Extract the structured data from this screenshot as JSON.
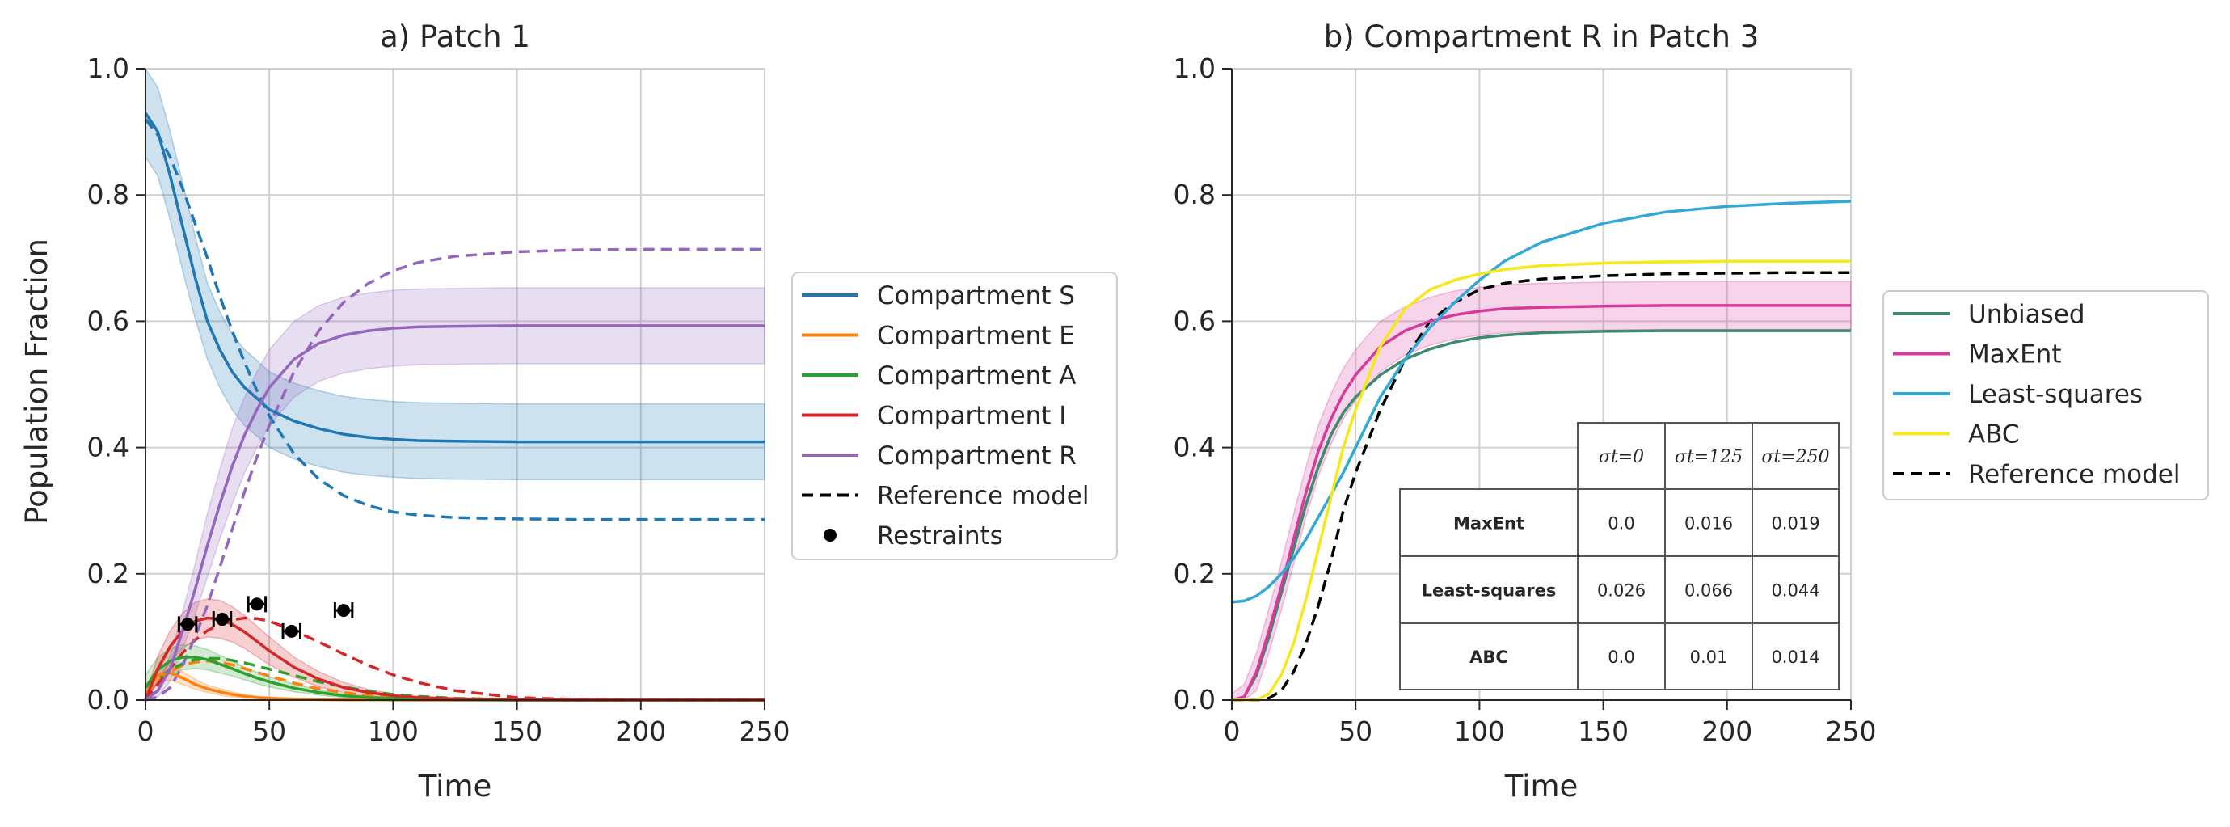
{
  "colors": {
    "S": "#1f77b4",
    "E": "#ff7f0e",
    "A": "#2ca02c",
    "I": "#d62728",
    "R": "#9467bd",
    "unbiased": "#3d8a6e",
    "maxent": "#d63a9a",
    "lsq": "#32a8d6",
    "abc": "#f7e81b",
    "ref": "#000000",
    "grid": "#d0d0d0",
    "axis": "#262626"
  },
  "chart_data": [
    {
      "type": "line",
      "title": "a) Patch 1",
      "xlabel": "Time",
      "ylabel": "Population Fraction",
      "xlim": [
        0,
        250
      ],
      "ylim": [
        0,
        1.0
      ],
      "xticks": [
        "0",
        "50",
        "100",
        "150",
        "200",
        "250"
      ],
      "yticks": [
        "0.0",
        "0.2",
        "0.4",
        "0.6",
        "0.8",
        "1.0"
      ],
      "grid": true,
      "legend_position": "right",
      "x": [
        0,
        5,
        10,
        15,
        20,
        25,
        30,
        35,
        40,
        45,
        50,
        60,
        70,
        80,
        90,
        100,
        110,
        125,
        150,
        175,
        200,
        225,
        250
      ],
      "series": [
        {
          "name": "Compartment S",
          "key": "S",
          "values": [
            0.93,
            0.9,
            0.83,
            0.75,
            0.67,
            0.6,
            0.555,
            0.52,
            0.495,
            0.478,
            0.46,
            0.442,
            0.43,
            0.421,
            0.416,
            0.413,
            0.411,
            0.41,
            0.409,
            0.409,
            0.409,
            0.409,
            0.409
          ],
          "band": [
            0.07,
            0.07,
            0.07,
            0.07,
            0.065,
            0.06,
            0.06,
            0.06,
            0.06,
            0.06,
            0.06,
            0.06,
            0.06,
            0.06,
            0.06,
            0.06,
            0.06,
            0.06,
            0.06,
            0.06,
            0.06,
            0.06,
            0.06
          ]
        },
        {
          "name": "Compartment E",
          "key": "E",
          "values": [
            0.01,
            0.04,
            0.043,
            0.035,
            0.025,
            0.018,
            0.013,
            0.009,
            0.006,
            0.004,
            0.003,
            0.0015,
            0.0008,
            0.0004,
            0.0002,
            0.0001,
            0,
            0,
            0,
            0,
            0,
            0,
            0
          ],
          "band": [
            0.012,
            0.012,
            0.012,
            0.01,
            0.008,
            0.006,
            0.005,
            0.004,
            0.003,
            0.002,
            0.002,
            0.001,
            0.001,
            0,
            0,
            0,
            0,
            0,
            0,
            0,
            0,
            0,
            0
          ]
        },
        {
          "name": "Compartment A",
          "key": "A",
          "values": [
            0.02,
            0.048,
            0.062,
            0.068,
            0.068,
            0.064,
            0.057,
            0.05,
            0.042,
            0.035,
            0.029,
            0.019,
            0.012,
            0.007,
            0.004,
            0.0025,
            0.0015,
            0.0005,
            0,
            0,
            0,
            0,
            0
          ],
          "band": [
            0.02,
            0.02,
            0.02,
            0.02,
            0.018,
            0.016,
            0.014,
            0.012,
            0.01,
            0.009,
            0.008,
            0.006,
            0.004,
            0.003,
            0.002,
            0.001,
            0.001,
            0,
            0,
            0,
            0,
            0,
            0
          ]
        },
        {
          "name": "Compartment I",
          "key": "I",
          "values": [
            0.0,
            0.05,
            0.085,
            0.11,
            0.125,
            0.13,
            0.128,
            0.12,
            0.108,
            0.093,
            0.078,
            0.052,
            0.033,
            0.02,
            0.012,
            0.007,
            0.004,
            0.002,
            0.0005,
            0,
            0,
            0,
            0
          ],
          "band": [
            0.005,
            0.02,
            0.025,
            0.028,
            0.03,
            0.03,
            0.03,
            0.028,
            0.026,
            0.024,
            0.022,
            0.016,
            0.012,
            0.008,
            0.005,
            0.003,
            0.002,
            0.001,
            0,
            0,
            0,
            0,
            0
          ]
        },
        {
          "name": "Compartment R",
          "key": "R",
          "values": [
            0.0,
            0.015,
            0.05,
            0.11,
            0.175,
            0.245,
            0.31,
            0.37,
            0.42,
            0.46,
            0.495,
            0.54,
            0.565,
            0.578,
            0.585,
            0.589,
            0.591,
            0.592,
            0.593,
            0.593,
            0.593,
            0.593,
            0.593
          ],
          "band": [
            0.005,
            0.01,
            0.02,
            0.03,
            0.04,
            0.05,
            0.055,
            0.06,
            0.06,
            0.06,
            0.06,
            0.06,
            0.06,
            0.06,
            0.06,
            0.06,
            0.06,
            0.06,
            0.06,
            0.06,
            0.06,
            0.06,
            0.06
          ]
        }
      ],
      "reference": [
        {
          "key": "S",
          "values": [
            0.92,
            0.895,
            0.86,
            0.81,
            0.755,
            0.7,
            0.64,
            0.585,
            0.535,
            0.49,
            0.45,
            0.39,
            0.35,
            0.324,
            0.308,
            0.298,
            0.293,
            0.289,
            0.287,
            0.286,
            0.286,
            0.286,
            0.286
          ]
        },
        {
          "key": "E",
          "values": [
            0.01,
            0.03,
            0.045,
            0.055,
            0.06,
            0.062,
            0.06,
            0.056,
            0.05,
            0.044,
            0.038,
            0.027,
            0.018,
            0.012,
            0.007,
            0.004,
            0.0025,
            0.001,
            0,
            0,
            0,
            0,
            0
          ]
        },
        {
          "key": "A",
          "values": [
            0.02,
            0.035,
            0.048,
            0.058,
            0.064,
            0.066,
            0.066,
            0.063,
            0.059,
            0.054,
            0.049,
            0.039,
            0.029,
            0.021,
            0.014,
            0.009,
            0.006,
            0.003,
            0.001,
            0,
            0,
            0,
            0
          ]
        },
        {
          "key": "I",
          "values": [
            0.0,
            0.025,
            0.05,
            0.075,
            0.095,
            0.11,
            0.12,
            0.127,
            0.13,
            0.129,
            0.125,
            0.11,
            0.092,
            0.073,
            0.055,
            0.04,
            0.028,
            0.015,
            0.004,
            0.001,
            0,
            0,
            0
          ]
        },
        {
          "key": "R",
          "values": [
            0.0,
            0.005,
            0.02,
            0.055,
            0.1,
            0.15,
            0.21,
            0.27,
            0.33,
            0.385,
            0.435,
            0.52,
            0.585,
            0.63,
            0.66,
            0.68,
            0.693,
            0.703,
            0.71,
            0.713,
            0.714,
            0.714,
            0.714
          ]
        }
      ],
      "restraints": {
        "name": "Restraints",
        "points": [
          {
            "x": 17,
            "y": 0.12,
            "xerr": 3.5
          },
          {
            "x": 31,
            "y": 0.128,
            "xerr": 3.5
          },
          {
            "x": 45,
            "y": 0.152,
            "xerr": 3.5
          },
          {
            "x": 59,
            "y": 0.109,
            "xerr": 3.5
          },
          {
            "x": 80,
            "y": 0.142,
            "xerr": 3.5
          }
        ]
      },
      "legend": [
        "Compartment S",
        "Compartment E",
        "Compartment A",
        "Compartment I",
        "Compartment R",
        "Reference model",
        "Restraints"
      ]
    },
    {
      "type": "line",
      "title": "b) Compartment R in Patch 3",
      "xlabel": "Time",
      "ylabel": "",
      "xlim": [
        0,
        250
      ],
      "ylim": [
        0,
        1.0
      ],
      "xticks": [
        "0",
        "50",
        "100",
        "150",
        "200",
        "250"
      ],
      "yticks": [
        "0.0",
        "0.2",
        "0.4",
        "0.6",
        "0.8",
        "1.0"
      ],
      "grid": true,
      "legend_position": "right",
      "x": [
        0,
        5,
        10,
        15,
        20,
        25,
        30,
        35,
        40,
        45,
        50,
        60,
        70,
        80,
        90,
        100,
        110,
        125,
        150,
        175,
        200,
        225,
        250
      ],
      "series": [
        {
          "name": "Unbiased",
          "key": "unbiased",
          "values": [
            0.0,
            0.005,
            0.04,
            0.1,
            0.17,
            0.24,
            0.31,
            0.37,
            0.42,
            0.455,
            0.48,
            0.515,
            0.54,
            0.556,
            0.567,
            0.574,
            0.578,
            0.582,
            0.584,
            0.585,
            0.585,
            0.585,
            0.585
          ]
        },
        {
          "name": "MaxEnt",
          "key": "maxent",
          "values": [
            0.0,
            0.005,
            0.045,
            0.11,
            0.18,
            0.255,
            0.33,
            0.395,
            0.445,
            0.485,
            0.515,
            0.56,
            0.585,
            0.6,
            0.61,
            0.616,
            0.62,
            0.622,
            0.624,
            0.625,
            0.625,
            0.625,
            0.625
          ],
          "band": [
            0.01,
            0.02,
            0.03,
            0.035,
            0.038,
            0.04,
            0.04,
            0.04,
            0.04,
            0.04,
            0.04,
            0.04,
            0.038,
            0.038,
            0.038,
            0.038,
            0.038,
            0.038,
            0.038,
            0.038,
            0.038,
            0.038,
            0.038
          ]
        },
        {
          "name": "Least-squares",
          "key": "lsq",
          "values": [
            0.155,
            0.157,
            0.165,
            0.18,
            0.2,
            0.225,
            0.255,
            0.29,
            0.325,
            0.36,
            0.4,
            0.48,
            0.54,
            0.59,
            0.63,
            0.665,
            0.695,
            0.725,
            0.755,
            0.773,
            0.782,
            0.787,
            0.79
          ]
        },
        {
          "name": "ABC",
          "key": "abc",
          "values": [
            0.0,
            0.0,
            0.0,
            0.01,
            0.04,
            0.09,
            0.16,
            0.24,
            0.32,
            0.4,
            0.46,
            0.56,
            0.62,
            0.65,
            0.665,
            0.675,
            0.682,
            0.688,
            0.692,
            0.694,
            0.695,
            0.695,
            0.695
          ]
        }
      ],
      "reference": [
        {
          "key": "ref",
          "values": [
            0.0,
            0.0,
            0.0,
            0.003,
            0.015,
            0.045,
            0.09,
            0.15,
            0.22,
            0.3,
            0.36,
            0.46,
            0.54,
            0.6,
            0.63,
            0.65,
            0.66,
            0.667,
            0.672,
            0.675,
            0.676,
            0.677,
            0.677
          ]
        }
      ],
      "legend": [
        "Unbiased",
        "MaxEnt",
        "Least-squares",
        "ABC",
        "Reference model"
      ],
      "table": {
        "headers": [
          "σt=0",
          "σt=125",
          "σt=250"
        ],
        "rows": [
          {
            "label": "MaxEnt",
            "values": [
              "0.0",
              "0.016",
              "0.019"
            ]
          },
          {
            "label": "Least-squares",
            "values": [
              "0.026",
              "0.066",
              "0.044"
            ]
          },
          {
            "label": "ABC",
            "values": [
              "0.0",
              "0.01",
              "0.014"
            ]
          }
        ]
      }
    }
  ]
}
